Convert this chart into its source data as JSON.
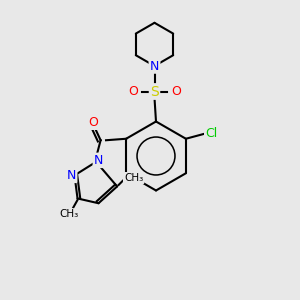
{
  "background_color": "#e8e8e8",
  "atom_colors": {
    "C": "#000000",
    "N": "#0000ff",
    "O": "#ff0000",
    "S": "#cccc00",
    "Cl": "#00cc00",
    "H": "#000000"
  },
  "bond_color": "#000000",
  "bond_width": 1.5,
  "figsize": [
    3.0,
    3.0
  ],
  "dpi": 100
}
